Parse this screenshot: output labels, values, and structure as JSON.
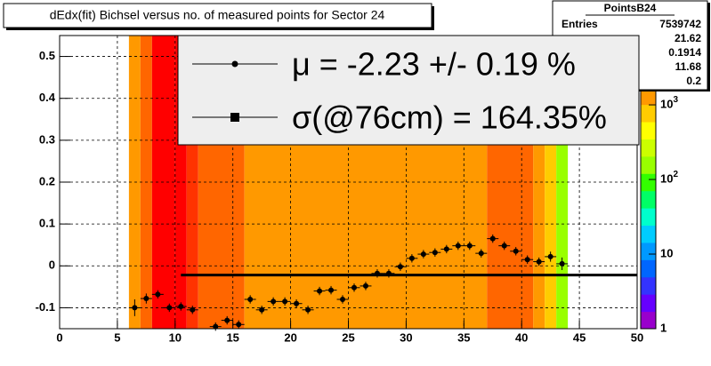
{
  "chart_data": {
    "type": "profile2d",
    "title": "dEdx(fit) Bichsel versus no. of measured points for Sector 24",
    "xlim": [
      0,
      50
    ],
    "xticks": [
      0,
      5,
      10,
      15,
      20,
      25,
      30,
      35,
      40,
      45,
      50
    ],
    "ylim": [
      -0.15,
      0.55
    ],
    "yticks": [
      -0.1,
      0,
      0.1,
      0.2,
      0.3,
      0.4,
      0.5
    ],
    "grid": true,
    "zlim": [
      1,
      8500
    ],
    "zlog": true,
    "zticks": [
      1,
      10,
      {
        "value": 100,
        "label": "10^2"
      },
      {
        "value": 1000,
        "label": "10^3"
      }
    ],
    "palette": [
      "#9900cc",
      "#6600ff",
      "#3333ff",
      "#0066ff",
      "#0099ff",
      "#00ccff",
      "#00ffcc",
      "#00ff66",
      "#33ff00",
      "#99ff00",
      "#ccff00",
      "#ffff00",
      "#ffcc00",
      "#ff9900",
      "#ff6600",
      "#ff3300",
      "#ff0000"
    ],
    "columns": {
      "bins": [
        6,
        7,
        8,
        10,
        11,
        12,
        16,
        37,
        41,
        42,
        43,
        44
      ],
      "counts": [
        1500,
        2500,
        7000,
        5000,
        3000,
        2500,
        1500,
        2500,
        1500,
        600,
        150
      ]
    },
    "profile": {
      "color": "#000000",
      "x": [
        6.5,
        7.5,
        8.5,
        9.5,
        10.5,
        11.5,
        13.5,
        14.5,
        15.5,
        16.5,
        17.5,
        18.5,
        19.5,
        20.5,
        21.5,
        22.5,
        23.5,
        24.5,
        25.5,
        26.5,
        27.5,
        28.5,
        29.5,
        30.5,
        31.5,
        32.5,
        33.5,
        34.5,
        35.5,
        36.5,
        37.5,
        38.5,
        39.5,
        40.5,
        41.5,
        42.5,
        43.5
      ],
      "values": [
        -0.1,
        -0.078,
        -0.068,
        -0.1,
        -0.097,
        -0.105,
        -0.145,
        -0.13,
        -0.14,
        -0.08,
        -0.105,
        -0.085,
        -0.085,
        -0.09,
        -0.105,
        -0.06,
        -0.058,
        -0.08,
        -0.052,
        -0.048,
        -0.018,
        -0.018,
        -0.002,
        0.018,
        0.028,
        0.032,
        0.04,
        0.048,
        0.048,
        0.03,
        0.065,
        0.048,
        0.035,
        0.015,
        0.01,
        0.022,
        0.005
      ],
      "errors": [
        0.02,
        0.012,
        0.01,
        0.01,
        0.01,
        0.01,
        0.01,
        0.01,
        0.01,
        0.01,
        0.01,
        0.01,
        0.01,
        0.01,
        0.01,
        0.01,
        0.01,
        0.01,
        0.01,
        0.01,
        0.01,
        0.01,
        0.01,
        0.01,
        0.01,
        0.01,
        0.01,
        0.01,
        0.01,
        0.01,
        0.01,
        0.01,
        0.01,
        0.01,
        0.01,
        0.012,
        0.015
      ]
    },
    "fit": {
      "x": [
        10.5,
        50
      ],
      "y": -0.022
    },
    "stats": {
      "name": "PointsB24",
      "entries_label": "Entries",
      "entries": "7539742",
      "values": [
        "21.62",
        "0.1914",
        "11.68",
        "0.2"
      ]
    },
    "legend": [
      "μ  = -2.23 +/-  0.19 %",
      "σ(@76cm) = 164.35%"
    ]
  }
}
